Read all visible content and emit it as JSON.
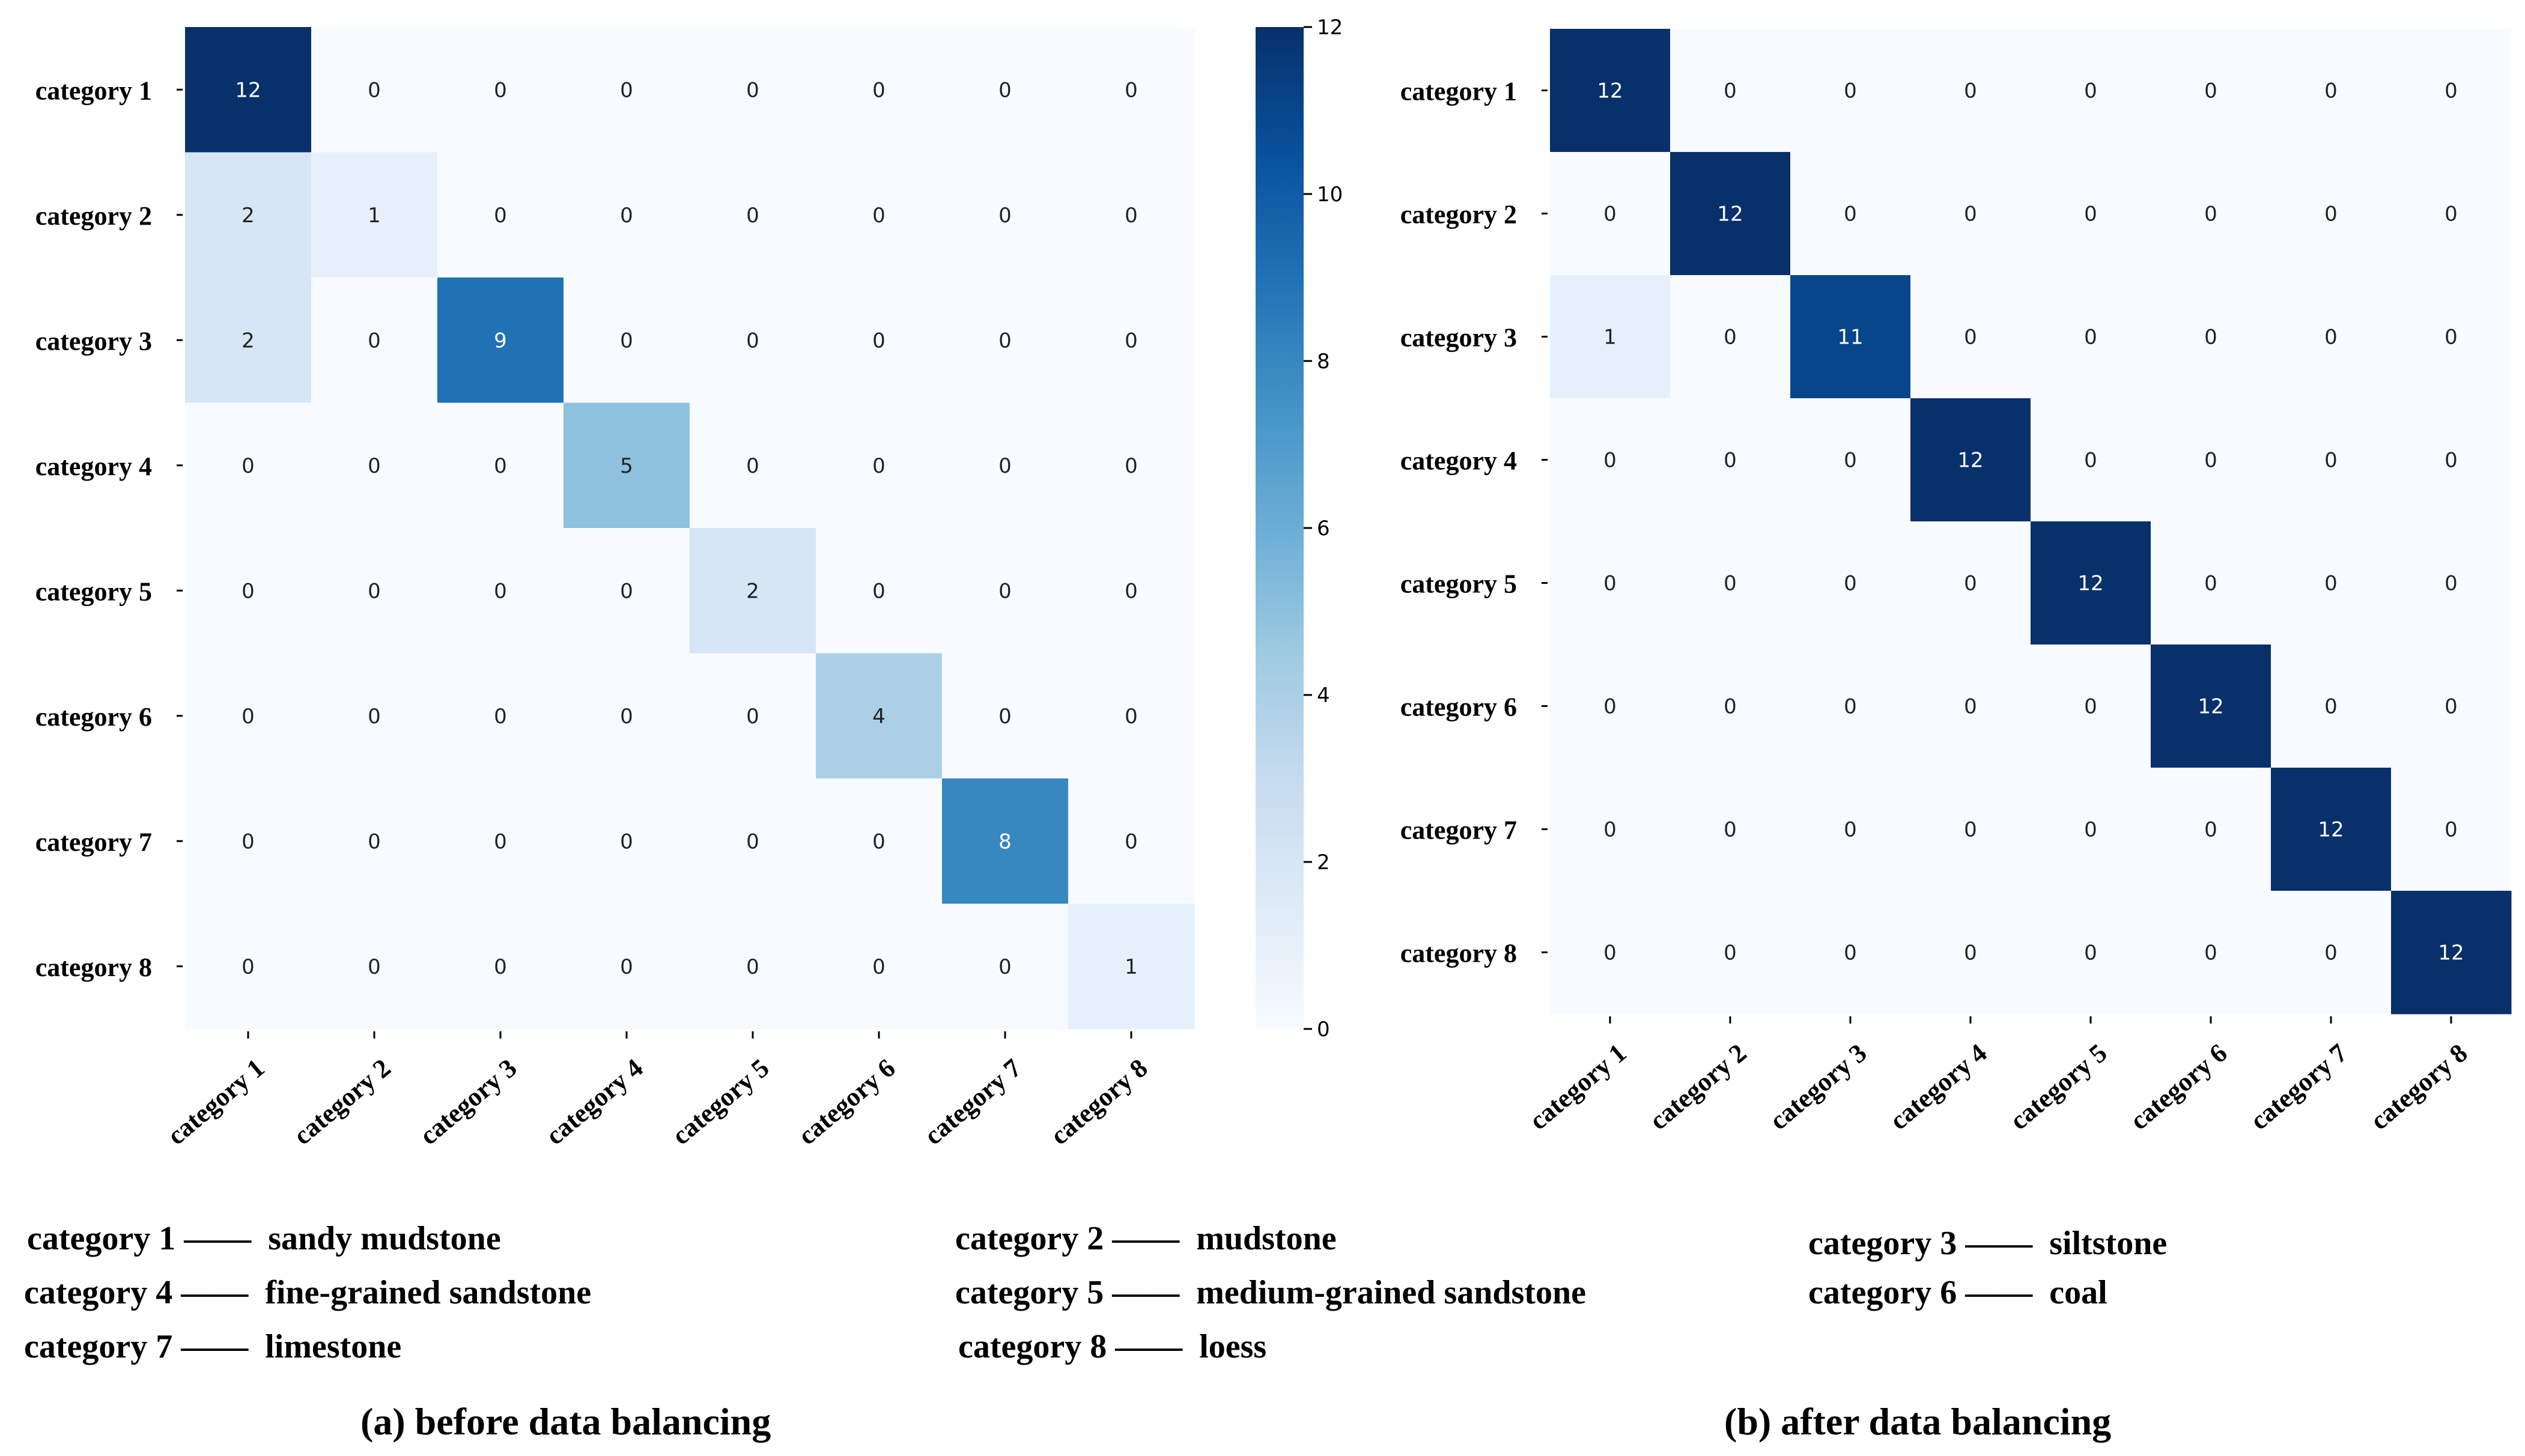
{
  "chart_data": [
    {
      "type": "heatmap",
      "title": "",
      "caption": "(a) before data balancing",
      "row_labels": [
        "category 1",
        "category 2",
        "category 3",
        "category 4",
        "category 5",
        "category 6",
        "category 7",
        "category 8"
      ],
      "col_labels": [
        "category 1",
        "category 2",
        "category 3",
        "category 4",
        "category 5",
        "category 6",
        "category 7",
        "category 8"
      ],
      "values": [
        [
          12,
          0,
          0,
          0,
          0,
          0,
          0,
          0
        ],
        [
          2,
          1,
          0,
          0,
          0,
          0,
          0,
          0
        ],
        [
          2,
          0,
          9,
          0,
          0,
          0,
          0,
          0
        ],
        [
          0,
          0,
          0,
          5,
          0,
          0,
          0,
          0
        ],
        [
          0,
          0,
          0,
          0,
          2,
          0,
          0,
          0
        ],
        [
          0,
          0,
          0,
          0,
          0,
          4,
          0,
          0
        ],
        [
          0,
          0,
          0,
          0,
          0,
          0,
          8,
          0
        ],
        [
          0,
          0,
          0,
          0,
          0,
          0,
          0,
          1
        ]
      ],
      "colorbar": {
        "min": 0,
        "max": 12,
        "ticks": [
          0,
          2,
          4,
          6,
          8,
          10,
          12
        ]
      },
      "colormap": "Blues"
    },
    {
      "type": "heatmap",
      "title": "",
      "caption": "(b) after data balancing",
      "row_labels": [
        "category 1",
        "category 2",
        "category 3",
        "category 4",
        "category 5",
        "category 6",
        "category 7",
        "category 8"
      ],
      "col_labels": [
        "category 1",
        "category 2",
        "category 3",
        "category 4",
        "category 5",
        "category 6",
        "category 7",
        "category 8"
      ],
      "values": [
        [
          12,
          0,
          0,
          0,
          0,
          0,
          0,
          0
        ],
        [
          0,
          12,
          0,
          0,
          0,
          0,
          0,
          0
        ],
        [
          1,
          0,
          11,
          0,
          0,
          0,
          0,
          0
        ],
        [
          0,
          0,
          0,
          12,
          0,
          0,
          0,
          0
        ],
        [
          0,
          0,
          0,
          0,
          12,
          0,
          0,
          0
        ],
        [
          0,
          0,
          0,
          0,
          0,
          12,
          0,
          0
        ],
        [
          0,
          0,
          0,
          0,
          0,
          0,
          12,
          0
        ],
        [
          0,
          0,
          0,
          0,
          0,
          0,
          0,
          12
        ]
      ],
      "colormap": "Blues"
    }
  ],
  "legend": [
    {
      "key": "category 1",
      "dash": "——",
      "name": "sandy mudstone"
    },
    {
      "key": "category 2",
      "dash": "——",
      "name": "mudstone"
    },
    {
      "key": "category 3",
      "dash": "——",
      "name": "siltstone"
    },
    {
      "key": "category 4",
      "dash": "——",
      "name": "fine-grained sandstone"
    },
    {
      "key": "category 5",
      "dash": "——",
      "name": "medium-grained sandstone"
    },
    {
      "key": "category 6",
      "dash": "——",
      "name": "coal"
    },
    {
      "key": "category 7",
      "dash": "——",
      "name": "limestone"
    },
    {
      "key": "category 8",
      "dash": "——",
      "name": "loess"
    }
  ]
}
